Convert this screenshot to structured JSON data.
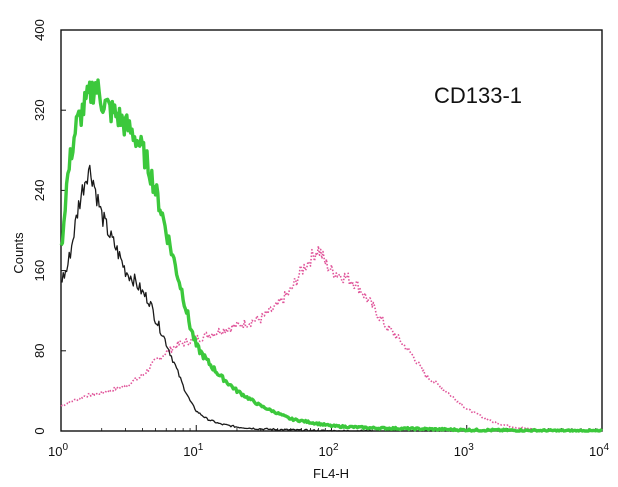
{
  "chart_data": {
    "type": "line",
    "title": "",
    "annotation": "CD133-1",
    "xlabel": "FL4-H",
    "ylabel": "Counts",
    "x_scale": "log",
    "xlim": [
      1,
      10000
    ],
    "ylim": [
      0,
      400
    ],
    "x_ticks": [
      {
        "value": 1,
        "base": "10",
        "exp": "0"
      },
      {
        "value": 10,
        "base": "10",
        "exp": "1"
      },
      {
        "value": 100,
        "base": "10",
        "exp": "2"
      },
      {
        "value": 1000,
        "base": "10",
        "exp": "3"
      },
      {
        "value": 10000,
        "base": "10",
        "exp": "4"
      }
    ],
    "y_ticks": [
      "0",
      "80",
      "160",
      "240",
      "320",
      "400"
    ],
    "grid": false,
    "legend": "none",
    "series": [
      {
        "color": "#1a1a1a",
        "style": "solid",
        "x": [
          1,
          1.1,
          1.2,
          1.35,
          1.5,
          1.6,
          1.7,
          1.8,
          2.0,
          2.3,
          2.6,
          3.0,
          3.5,
          4.0,
          4.5,
          5.0,
          5.5,
          6.0,
          7.0,
          8.0,
          9.0,
          10,
          12,
          15,
          20,
          30,
          50,
          100,
          150,
          200
        ],
        "y": [
          150,
          160,
          185,
          225,
          250,
          262,
          255,
          240,
          215,
          195,
          180,
          160,
          150,
          138,
          130,
          112,
          100,
          88,
          65,
          45,
          30,
          20,
          12,
          7,
          4,
          2,
          1,
          0,
          0,
          0
        ]
      },
      {
        "color": "#3cc83c",
        "style": "solid",
        "x": [
          1,
          1.05,
          1.1,
          1.2,
          1.3,
          1.5,
          1.7,
          1.8,
          2.0,
          2.3,
          2.6,
          3.0,
          3.5,
          4.0,
          4.5,
          5.0,
          5.5,
          6.0,
          7.0,
          8.0,
          9.0,
          10,
          12,
          15,
          20,
          30,
          50,
          100,
          200,
          500,
          1000,
          10000
        ],
        "y": [
          180,
          210,
          245,
          280,
          305,
          325,
          340,
          345,
          330,
          320,
          315,
          305,
          295,
          280,
          262,
          240,
          220,
          200,
          165,
          135,
          105,
          85,
          70,
          55,
          40,
          25,
          12,
          5,
          3,
          2,
          1,
          0
        ]
      },
      {
        "color": "#e0559a",
        "style": "dotted",
        "x": [
          1,
          1.5,
          2,
          3,
          4,
          5,
          7,
          10,
          15,
          20,
          30,
          40,
          50,
          60,
          70,
          80,
          90,
          100,
          120,
          150,
          200,
          250,
          300,
          400,
          500,
          700,
          1000,
          1500,
          2000,
          3000
        ],
        "y": [
          25,
          35,
          38,
          45,
          55,
          70,
          85,
          92,
          100,
          105,
          112,
          125,
          140,
          160,
          172,
          182,
          168,
          160,
          155,
          148,
          125,
          105,
          95,
          75,
          55,
          40,
          22,
          10,
          5,
          2
        ]
      }
    ]
  }
}
